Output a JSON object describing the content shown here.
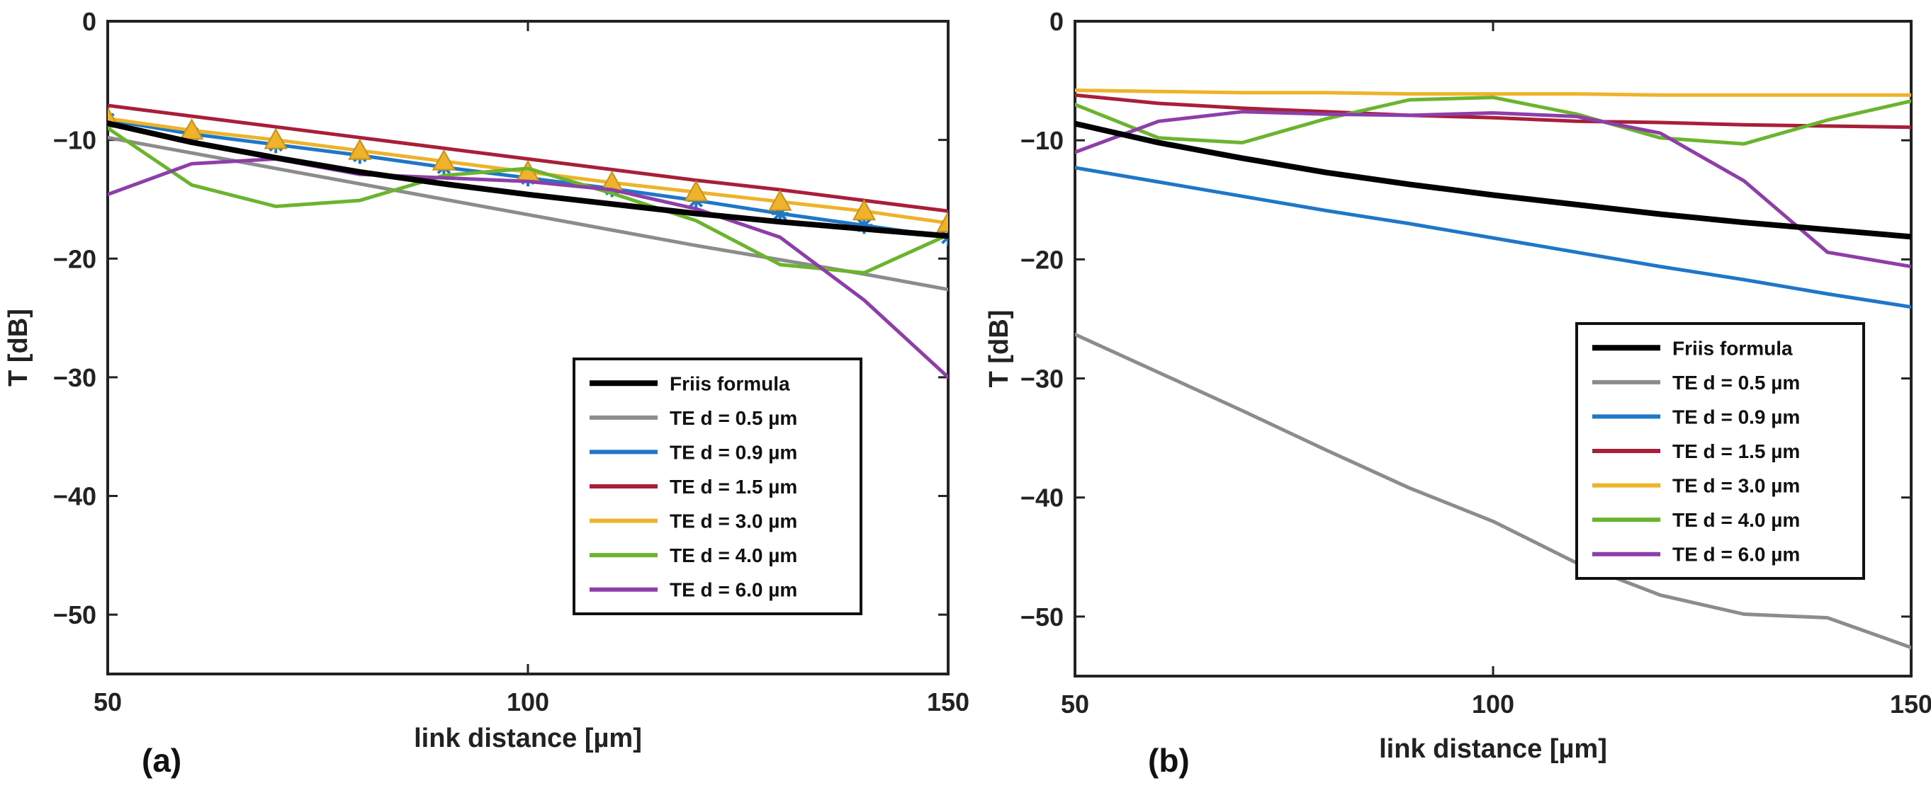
{
  "chart_data": [
    {
      "type": "line",
      "panel_label": "(a)",
      "xlabel": "link distance [µm]",
      "ylabel": "T [dB]",
      "xlim": [
        50,
        150
      ],
      "ylim": [
        -55,
        0
      ],
      "xticks": [
        50,
        100,
        150
      ],
      "yticks": [
        0,
        -10,
        -20,
        -30,
        -40,
        -50
      ],
      "ytick_labels": [
        "0",
        "−10",
        "−20",
        "−30",
        "−40",
        "−50"
      ],
      "grid": false,
      "legend_position": "bottom-right",
      "series": [
        {
          "name": "Friis formula",
          "color": "#000000",
          "x": [
            50,
            60,
            70,
            80,
            90,
            100,
            110,
            120,
            130,
            140,
            150
          ],
          "y": [
            -8.6,
            -10.2,
            -11.5,
            -12.7,
            -13.7,
            -14.6,
            -15.4,
            -16.2,
            -16.9,
            -17.5,
            -18.1
          ]
        },
        {
          "name": "TE d = 0.5 µm",
          "color": "#8c8c8c",
          "x": [
            50,
            60,
            70,
            80,
            90,
            100,
            110,
            120,
            130,
            140,
            150
          ],
          "y": [
            -9.8,
            -11.1,
            -12.4,
            -13.7,
            -15.0,
            -16.3,
            -17.6,
            -18.9,
            -20.1,
            -21.3,
            -22.6
          ]
        },
        {
          "name": "TE d = 0.9 µm",
          "color": "#1f77c8",
          "marker": "star",
          "x": [
            50,
            60,
            70,
            80,
            90,
            100,
            110,
            120,
            130,
            140,
            150
          ],
          "y": [
            -8.3,
            -9.5,
            -10.4,
            -11.3,
            -12.3,
            -13.2,
            -14.1,
            -15.1,
            -16.2,
            -17.2,
            -18.2
          ]
        },
        {
          "name": "TE d = 1.5 µm",
          "color": "#a81f3a",
          "x": [
            50,
            60,
            70,
            80,
            90,
            100,
            110,
            120,
            130,
            140,
            150
          ],
          "y": [
            -7.1,
            -8.0,
            -8.9,
            -9.8,
            -10.7,
            -11.6,
            -12.5,
            -13.4,
            -14.2,
            -15.1,
            -16.0
          ]
        },
        {
          "name": "TE d = 3.0 µm",
          "color": "#eeb32a",
          "marker": "triangle",
          "x": [
            50,
            60,
            70,
            80,
            90,
            100,
            110,
            120,
            130,
            140,
            150
          ],
          "y": [
            -8.2,
            -9.2,
            -10.0,
            -10.9,
            -11.8,
            -12.7,
            -13.6,
            -14.4,
            -15.2,
            -16.0,
            -17.0
          ]
        },
        {
          "name": "TE d = 4.0 µm",
          "color": "#6ab42e",
          "x": [
            50,
            60,
            70,
            80,
            90,
            100,
            110,
            120,
            130,
            140,
            150
          ],
          "y": [
            -9.0,
            -13.8,
            -15.6,
            -15.1,
            -13.0,
            -12.4,
            -14.5,
            -16.8,
            -20.5,
            -21.2,
            -18.0
          ]
        },
        {
          "name": "TE d = 6.0 µm",
          "color": "#8e3ea8",
          "x": [
            50,
            60,
            70,
            80,
            90,
            100,
            110,
            120,
            130,
            140,
            150
          ],
          "y": [
            -14.6,
            -12.0,
            -11.6,
            -12.9,
            -13.2,
            -13.5,
            -14.2,
            -15.8,
            -18.2,
            -23.5,
            -30.0
          ]
        }
      ]
    },
    {
      "type": "line",
      "panel_label": "(b)",
      "xlabel": "link distance [µm]",
      "ylabel": "T [dB]",
      "xlim": [
        50,
        150
      ],
      "ylim": [
        -55,
        0
      ],
      "xticks": [
        50,
        100,
        150
      ],
      "yticks": [
        0,
        -10,
        -20,
        -30,
        -40,
        -50
      ],
      "ytick_labels": [
        "0",
        "−10",
        "−20",
        "−30",
        "−40",
        "−50"
      ],
      "grid": false,
      "legend_position": "center-right",
      "series": [
        {
          "name": "Friis formula",
          "color": "#000000",
          "x": [
            50,
            60,
            70,
            80,
            90,
            100,
            110,
            120,
            130,
            140,
            150
          ],
          "y": [
            -8.6,
            -10.2,
            -11.5,
            -12.7,
            -13.7,
            -14.6,
            -15.4,
            -16.2,
            -16.9,
            -17.5,
            -18.1
          ]
        },
        {
          "name": "TE d = 0.5 µm",
          "color": "#8c8c8c",
          "x": [
            50,
            60,
            70,
            80,
            90,
            100,
            110,
            120,
            130,
            140,
            150
          ],
          "y": [
            -26.3,
            -29.5,
            -32.7,
            -36.0,
            -39.2,
            -42.0,
            -45.5,
            -48.2,
            -49.8,
            -50.1,
            -52.6
          ]
        },
        {
          "name": "TE d = 0.9 µm",
          "color": "#1f77c8",
          "x": [
            50,
            60,
            70,
            80,
            90,
            100,
            110,
            120,
            130,
            140,
            150
          ],
          "y": [
            -12.3,
            -13.5,
            -14.7,
            -15.9,
            -17.0,
            -18.2,
            -19.4,
            -20.6,
            -21.7,
            -22.9,
            -24.0
          ]
        },
        {
          "name": "TE d = 1.5 µm",
          "color": "#a81f3a",
          "x": [
            50,
            60,
            70,
            80,
            90,
            100,
            110,
            120,
            130,
            140,
            150
          ],
          "y": [
            -6.2,
            -6.9,
            -7.3,
            -7.6,
            -7.9,
            -8.1,
            -8.4,
            -8.5,
            -8.7,
            -8.8,
            -8.9
          ]
        },
        {
          "name": "TE d = 3.0 µm",
          "color": "#eeb32a",
          "x": [
            50,
            60,
            70,
            80,
            90,
            100,
            110,
            120,
            130,
            140,
            150
          ],
          "y": [
            -5.8,
            -5.9,
            -6.0,
            -6.0,
            -6.1,
            -6.1,
            -6.1,
            -6.2,
            -6.2,
            -6.2,
            -6.2
          ]
        },
        {
          "name": "TE d = 4.0 µm",
          "color": "#6ab42e",
          "x": [
            50,
            60,
            70,
            80,
            90,
            100,
            110,
            120,
            130,
            140,
            150
          ],
          "y": [
            -7.0,
            -9.8,
            -10.2,
            -8.2,
            -6.6,
            -6.4,
            -7.8,
            -9.8,
            -10.3,
            -8.3,
            -6.7
          ]
        },
        {
          "name": "TE d = 6.0 µm",
          "color": "#8e3ea8",
          "x": [
            50,
            60,
            70,
            80,
            90,
            100,
            110,
            120,
            130,
            140,
            150
          ],
          "y": [
            -11.0,
            -8.4,
            -7.6,
            -7.8,
            -7.9,
            -7.7,
            -8.0,
            -9.4,
            -13.4,
            -19.4,
            -20.6
          ]
        }
      ]
    }
  ]
}
